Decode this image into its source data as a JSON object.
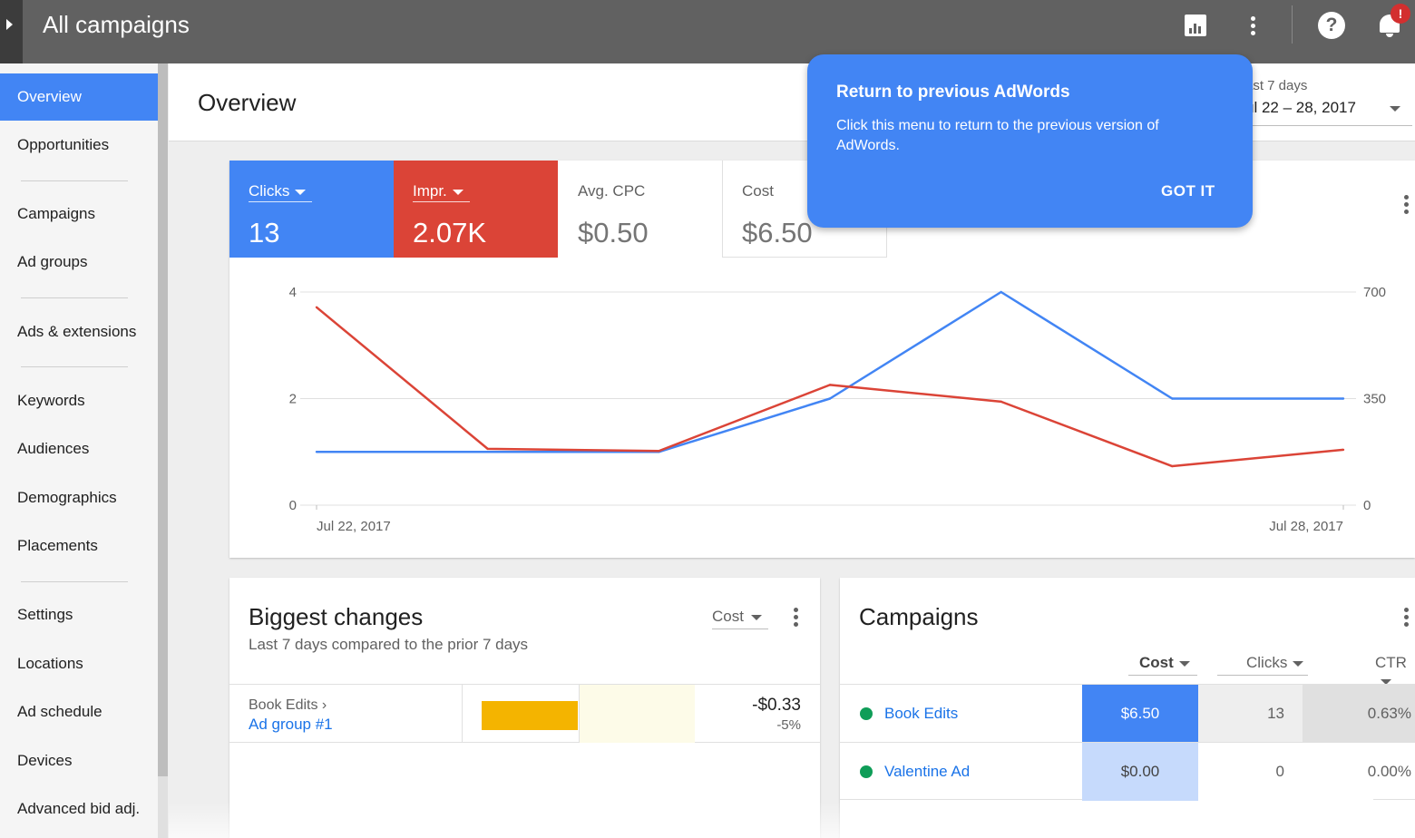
{
  "topbar": {
    "title": "All campaigns",
    "icons": [
      "nav-toggle-icon",
      "reports-icon",
      "more-vert-icon",
      "help-icon",
      "notifications-icon"
    ],
    "notification_badge": "!"
  },
  "sidebar": {
    "items": [
      {
        "label": "Overview",
        "active": true
      },
      {
        "label": "Opportunities"
      },
      {
        "label": "Campaigns"
      },
      {
        "label": "Ad groups"
      },
      {
        "label": "Ads & extensions"
      },
      {
        "label": "Keywords"
      },
      {
        "label": "Audiences"
      },
      {
        "label": "Demographics"
      },
      {
        "label": "Placements"
      },
      {
        "label": "Settings"
      },
      {
        "label": "Locations"
      },
      {
        "label": "Ad schedule"
      },
      {
        "label": "Devices"
      },
      {
        "label": "Advanced bid adj."
      }
    ]
  },
  "overview": {
    "title": "Overview",
    "date_label": "ast 7 days",
    "date_range": "ul 22 – 28, 2017"
  },
  "metrics": {
    "clicks": {
      "label": "Clicks",
      "value": "13"
    },
    "impr": {
      "label": "Impr.",
      "value": "2.07K"
    },
    "cpc": {
      "label": "Avg. CPC",
      "value": "$0.50"
    },
    "cost": {
      "label": "Cost",
      "value": "$6.50"
    }
  },
  "tooltip": {
    "title": "Return to previous AdWords",
    "body": "Click this menu to return to the previous version of AdWords.",
    "button": "GOT IT"
  },
  "chart_data": {
    "type": "line",
    "x": [
      "Jul 22, 2017",
      "Jul 23, 2017",
      "Jul 24, 2017",
      "Jul 25, 2017",
      "Jul 26, 2017",
      "Jul 27, 2017",
      "Jul 28, 2017"
    ],
    "x_tick_labels": [
      "Jul 22, 2017",
      "Jul 28, 2017"
    ],
    "y_left": {
      "ticks": [
        "0",
        "2",
        "4"
      ],
      "range": [
        0,
        4
      ]
    },
    "y_right": {
      "ticks": [
        "0",
        "350",
        "700"
      ],
      "range": [
        0,
        700
      ]
    },
    "series": [
      {
        "axis": "left",
        "color": "#4285f4",
        "values": [
          1,
          1,
          1,
          2,
          4,
          2,
          2
        ]
      },
      {
        "axis": "right",
        "color": "#db4437",
        "values": [
          650,
          185,
          178,
          395,
          340,
          128,
          182
        ]
      }
    ],
    "grid": true
  },
  "biggest_changes": {
    "title": "Biggest changes",
    "subtitle": "Last 7 days compared to the prior 7 days",
    "select": "Cost",
    "rows": [
      {
        "campaign": "Book Edits ›",
        "ad_group": "Ad group #1",
        "value": "-$0.33",
        "pct": "-5%"
      }
    ]
  },
  "campaigns": {
    "title": "Campaigns",
    "headers": {
      "cost": "Cost",
      "clicks": "Clicks",
      "ctr": "CTR"
    },
    "rows": [
      {
        "name": "Book Edits",
        "cost": "$6.50",
        "clicks": "13",
        "ctr": "0.63%"
      },
      {
        "name": "Valentine Ad",
        "cost": "$0.00",
        "clicks": "0",
        "ctr": "0.00%"
      }
    ]
  }
}
